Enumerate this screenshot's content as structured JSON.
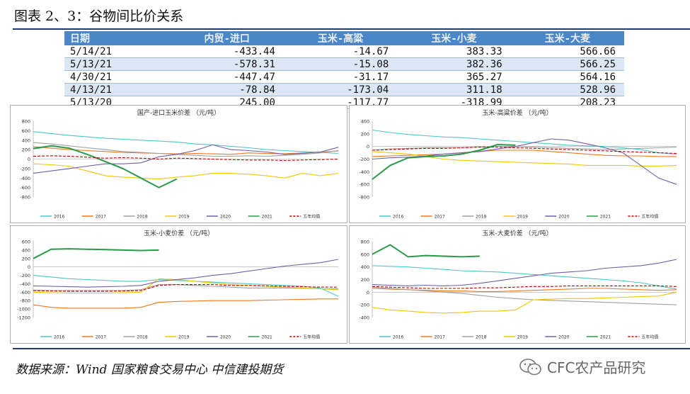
{
  "header": {
    "title": "图表 2、3：谷物间比价关系"
  },
  "table": {
    "columns": [
      "日期",
      "内贸-进口",
      "玉米-高粱",
      "玉米-小麦",
      "玉米-大麦"
    ],
    "rows": [
      [
        "5/14/21",
        "-433.44",
        "-14.67",
        "383.33",
        "566.66"
      ],
      [
        "5/13/21",
        "-578.31",
        "-15.08",
        "382.36",
        "566.25"
      ],
      [
        "4/30/21",
        "-447.47",
        "-31.17",
        "365.27",
        "564.16"
      ],
      [
        "4/13/21",
        "-78.84",
        "-173.04",
        "311.18",
        "528.96"
      ],
      [
        "5/13/20",
        "245.00",
        "-117.77",
        "-318.99",
        "208.23"
      ]
    ]
  },
  "footer": {
    "source": "数据来源：Wind 国家粮食交易中心 中信建投期货",
    "watermark": "CFC农产品研究"
  },
  "colors": {
    "2016": "#4bc8c8",
    "2017": "#f07820",
    "2018": "#a0a0a0",
    "2019": "#f0c800",
    "2020": "#7060a8",
    "2021": "#2a9a4a",
    "avg": "#c00000"
  },
  "chart_data": [
    {
      "type": "line",
      "title": "国产-进口玉米价差 （元/吨）",
      "ylim": [
        -800,
        800
      ],
      "yticks": [
        -800,
        -600,
        -400,
        -200,
        0,
        200,
        400,
        600,
        800
      ],
      "legend": [
        "2016",
        "2017",
        "2018",
        "2019",
        "2020",
        "2021",
        "五年均值"
      ],
      "series": [
        {
          "name": "2016",
          "values": [
            580,
            540,
            500,
            470,
            440,
            420,
            400,
            380,
            360,
            320,
            300,
            270,
            240,
            200,
            180,
            160,
            140,
            120
          ]
        },
        {
          "name": "2017",
          "values": [
            260,
            230,
            200,
            180,
            160,
            140,
            130,
            120,
            110,
            120,
            110,
            100,
            130,
            120,
            110,
            130,
            150,
            170
          ]
        },
        {
          "name": "2018",
          "values": [
            350,
            320,
            280,
            240,
            200,
            160,
            140,
            120,
            100,
            80,
            60,
            60,
            70,
            60,
            80,
            100,
            130,
            180
          ]
        },
        {
          "name": "2019",
          "values": [
            -100,
            -120,
            -150,
            -250,
            -350,
            -380,
            -400,
            -420,
            -380,
            -350,
            -300,
            -300,
            -320,
            -350,
            -400,
            -300,
            -350,
            -300
          ]
        },
        {
          "name": "2020",
          "values": [
            -300,
            -250,
            -200,
            -150,
            -100,
            -100,
            -80,
            50,
            100,
            180,
            300,
            200,
            180,
            150,
            100,
            120,
            150,
            250
          ]
        },
        {
          "name": "2021",
          "values": [
            220,
            280,
            230,
            100,
            -50,
            -200,
            -400,
            -600,
            -420
          ]
        },
        {
          "name": "五年均值",
          "values": [
            60,
            70,
            60,
            40,
            20,
            30,
            20,
            0,
            20,
            10,
            0,
            -10,
            -20,
            -20,
            -30,
            -20,
            -10,
            0
          ]
        }
      ]
    },
    {
      "type": "line",
      "title": "玉米-高粱价差 （元/吨）",
      "ylim": [
        -800,
        400
      ],
      "yticks": [
        -800,
        -600,
        -400,
        -200,
        0,
        200,
        400
      ],
      "legend": [
        "2016",
        "2017",
        "2018",
        "2019",
        "2020",
        "2021",
        "五年均值"
      ],
      "series": [
        {
          "name": "2016",
          "values": [
            260,
            220,
            190,
            170,
            150,
            140,
            120,
            100,
            80,
            60,
            40,
            20,
            10,
            0,
            -20,
            -50,
            -100,
            -120
          ]
        },
        {
          "name": "2017",
          "values": [
            -160,
            -150,
            -140,
            -130,
            -120,
            -100,
            -80,
            -60,
            -60,
            -60,
            -80,
            -100,
            -120,
            -140,
            -150,
            -150,
            -160,
            -160
          ]
        },
        {
          "name": "2018",
          "values": [
            -60,
            -40,
            -30,
            -20,
            -20,
            -20,
            -10,
            0,
            0,
            -10,
            -20,
            -30,
            -40,
            -50,
            -40,
            -30,
            -20,
            -10
          ]
        },
        {
          "name": "2019",
          "values": [
            -80,
            -100,
            -120,
            -160,
            -200,
            -220,
            -230,
            -240,
            -250,
            -260,
            -270,
            -280,
            -300,
            -300,
            -300,
            -310,
            -310,
            -300
          ]
        },
        {
          "name": "2020",
          "values": [
            -200,
            -180,
            -170,
            -150,
            -120,
            -100,
            -80,
            -40,
            0,
            60,
            120,
            100,
            40,
            -20,
            -100,
            -300,
            -500,
            -600
          ]
        },
        {
          "name": "2021",
          "values": [
            -520,
            -300,
            -180,
            -160,
            -150,
            -120,
            -60,
            30,
            20
          ]
        },
        {
          "name": "五年均值",
          "values": [
            -60,
            -50,
            -40,
            -30,
            -30,
            -20,
            -10,
            -10,
            -20,
            -30,
            -40,
            -50,
            -60,
            -70,
            -80,
            -90,
            -100,
            -110
          ]
        }
      ]
    },
    {
      "type": "line",
      "title": "玉米-小麦价差 （元/吨）",
      "ylim": [
        -1200,
        600
      ],
      "yticks": [
        -1200,
        -1000,
        -800,
        -600,
        -400,
        -200,
        0,
        200,
        400,
        600
      ],
      "legend": [
        "2016",
        "2017",
        "2018",
        "2019",
        "2020",
        "2021",
        "五年均值"
      ],
      "series": [
        {
          "name": "2016",
          "values": [
            -200,
            -240,
            -280,
            -300,
            -320,
            -340,
            -340,
            -300,
            -320,
            -340,
            -360,
            -380,
            -400,
            -420,
            -440,
            -460,
            -500,
            -700
          ]
        },
        {
          "name": "2017",
          "values": [
            -900,
            -960,
            -980,
            -980,
            -980,
            -980,
            -960,
            -840,
            -820,
            -810,
            -800,
            -800,
            -800,
            -790,
            -780,
            -770,
            -760,
            -760
          ]
        },
        {
          "name": "2018",
          "values": [
            -550,
            -560,
            -560,
            -560,
            -560,
            -560,
            -540,
            -420,
            -420,
            -440,
            -460,
            -480,
            -500,
            -500,
            -500,
            -510,
            -520,
            -520
          ]
        },
        {
          "name": "2019",
          "values": [
            -600,
            -610,
            -620,
            -620,
            -620,
            -610,
            -600,
            -280,
            -300,
            -340,
            -380,
            -420,
            -440,
            -460,
            -480,
            -500,
            -520,
            -540
          ]
        },
        {
          "name": "2020",
          "values": [
            -450,
            -460,
            -470,
            -480,
            -470,
            -460,
            -440,
            -340,
            -300,
            -260,
            -200,
            -160,
            -100,
            -40,
            20,
            60,
            100,
            180
          ]
        },
        {
          "name": "2021",
          "values": [
            200,
            420,
            430,
            420,
            410,
            400,
            390,
            400
          ]
        },
        {
          "name": "五年均值",
          "values": [
            -560,
            -570,
            -580,
            -580,
            -580,
            -570,
            -560,
            -440,
            -420,
            -420,
            -420,
            -440,
            -440,
            -450,
            -460,
            -470,
            -480,
            -480
          ]
        }
      ]
    },
    {
      "type": "line",
      "title": "玉米-大麦价差 （元/吨）",
      "ylim": [
        -400,
        800
      ],
      "yticks": [
        -400,
        -200,
        0,
        200,
        400,
        600,
        800
      ],
      "legend": [
        "2016",
        "2017",
        "2018",
        "2019",
        "2020",
        "2021",
        "五年均值"
      ],
      "series": [
        {
          "name": "2016",
          "values": [
            420,
            410,
            400,
            380,
            360,
            340,
            330,
            320,
            300,
            280,
            260,
            240,
            220,
            200,
            180,
            150,
            100,
            50
          ]
        },
        {
          "name": "2017",
          "values": [
            60,
            50,
            40,
            30,
            20,
            20,
            10,
            10,
            20,
            30,
            40,
            50,
            60,
            60,
            50,
            40,
            30,
            40
          ]
        },
        {
          "name": "2018",
          "values": [
            80,
            60,
            40,
            20,
            0,
            -20,
            -50,
            -80,
            -100,
            -120,
            -130,
            -140,
            -150,
            -160,
            -170,
            -180,
            -190,
            -200
          ]
        },
        {
          "name": "2019",
          "values": [
            -240,
            -280,
            -300,
            -320,
            -330,
            -320,
            -300,
            -300,
            -280,
            -120,
            -110,
            -100,
            -100,
            -90,
            -80,
            -70,
            -60,
            0
          ]
        },
        {
          "name": "2020",
          "values": [
            120,
            110,
            100,
            110,
            100,
            110,
            140,
            180,
            220,
            260,
            300,
            320,
            340,
            380,
            400,
            420,
            460,
            520
          ]
        },
        {
          "name": "2021",
          "values": [
            600,
            750,
            560,
            580,
            570,
            560,
            570
          ]
        },
        {
          "name": "五年均值",
          "values": [
            90,
            80,
            70,
            60,
            60,
            60,
            70,
            70,
            80,
            90,
            90,
            100,
            100,
            100,
            100,
            100,
            100,
            90
          ]
        }
      ]
    }
  ]
}
